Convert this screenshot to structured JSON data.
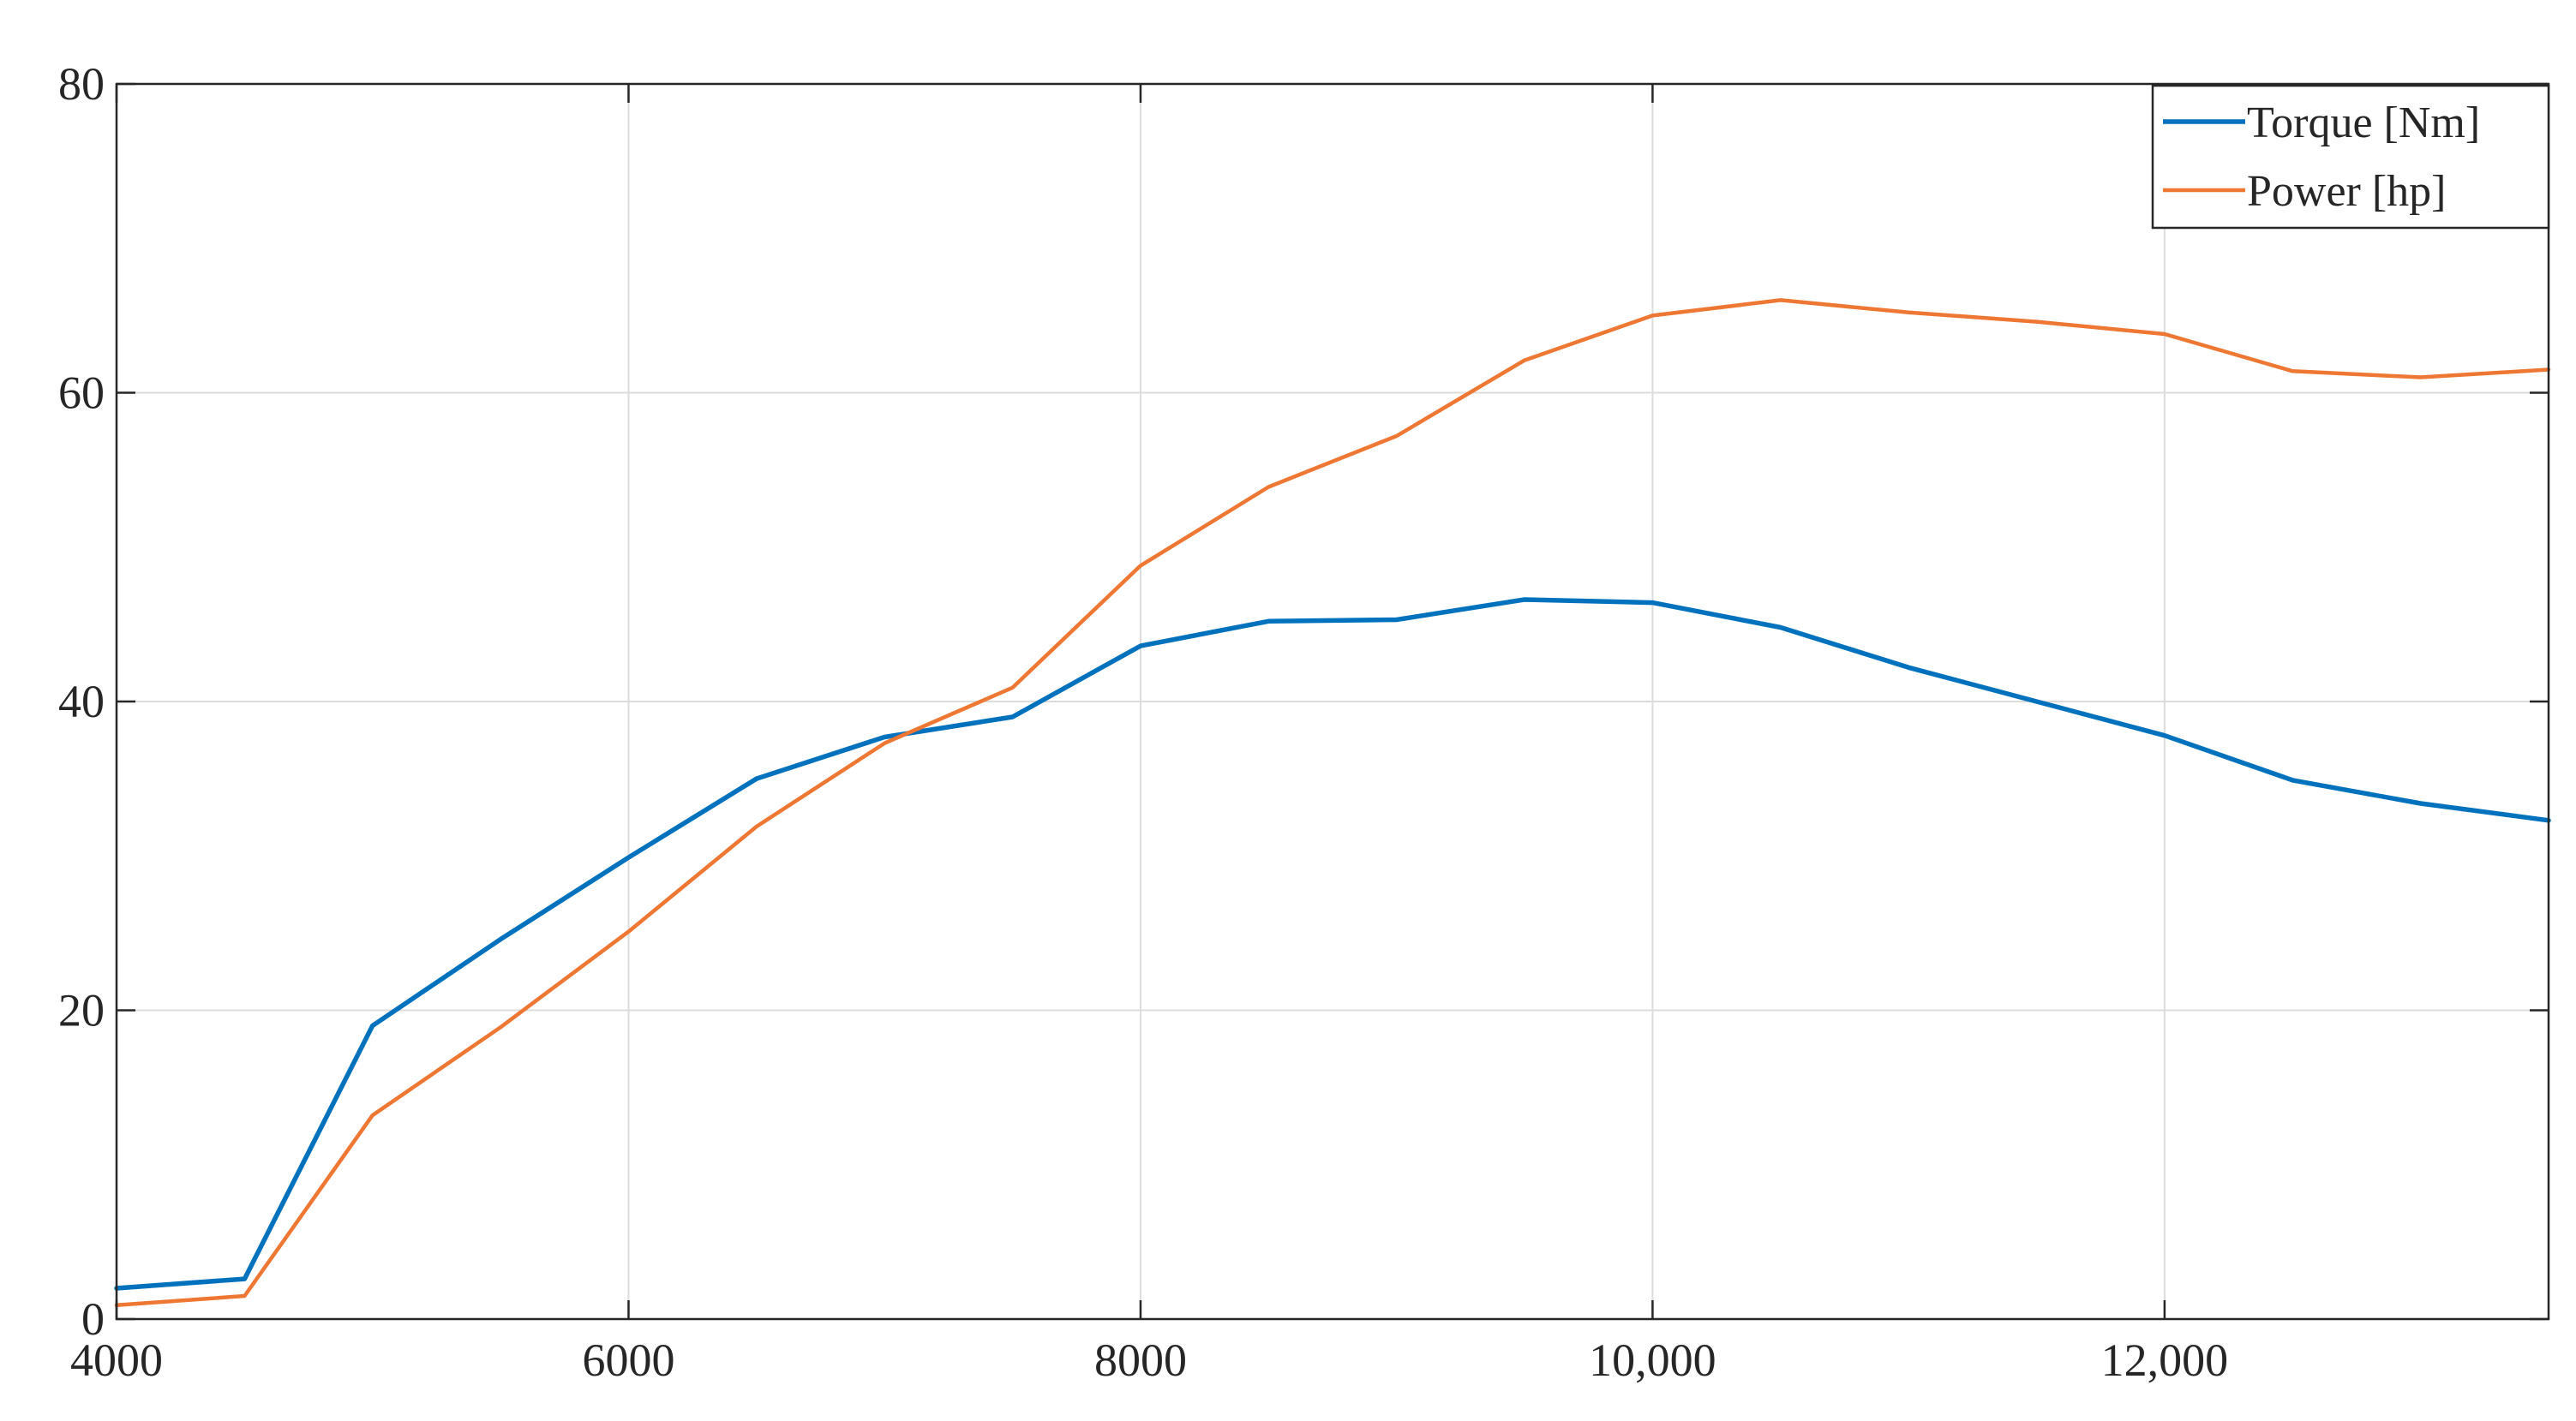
{
  "chart_data": {
    "type": "line",
    "title": "",
    "xlabel": "",
    "ylabel": "",
    "xlim": [
      4000,
      13500
    ],
    "ylim": [
      0,
      80
    ],
    "grid": true,
    "legend_position": "top-right",
    "x_ticks": [
      4000,
      6000,
      8000,
      10000,
      12000
    ],
    "x_tick_labels": [
      "4000",
      "6000",
      "8000",
      "10,000",
      "12,000"
    ],
    "y_ticks": [
      0,
      20,
      40,
      60,
      80
    ],
    "y_tick_labels": [
      "0",
      "20",
      "40",
      "60",
      "80"
    ],
    "x": [
      4000,
      4500,
      5000,
      5500,
      6000,
      6500,
      7000,
      7500,
      8000,
      8500,
      9000,
      9500,
      10000,
      10500,
      11000,
      11500,
      12000,
      12500,
      13000,
      13500
    ],
    "series": [
      {
        "name": "Torque [Nm]",
        "color": "#0072BD",
        "values": [
          2.0,
          2.6,
          19.0,
          24.6,
          29.9,
          35.0,
          37.7,
          39.0,
          43.6,
          45.2,
          45.3,
          46.6,
          46.4,
          44.8,
          42.2,
          40.0,
          37.8,
          34.9,
          33.4,
          32.3
        ]
      },
      {
        "name": "Power [hp]",
        "color": "#EE7733",
        "values": [
          0.9,
          1.5,
          13.2,
          18.9,
          25.1,
          31.9,
          37.3,
          40.9,
          48.8,
          53.9,
          57.2,
          62.1,
          65.0,
          66.0,
          65.2,
          64.6,
          63.8,
          61.4,
          61.0,
          61.5
        ]
      }
    ]
  }
}
